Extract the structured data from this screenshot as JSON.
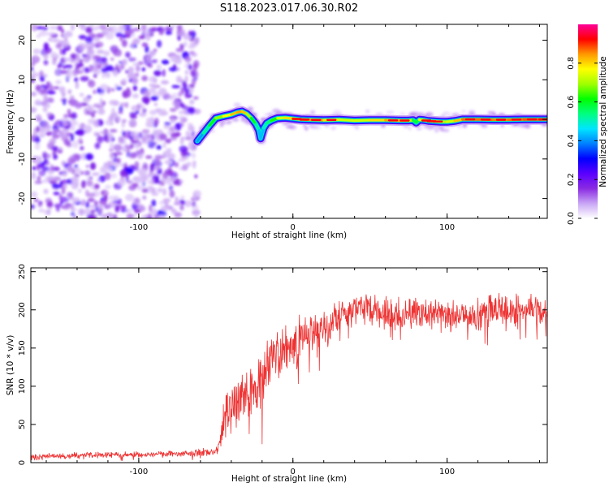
{
  "title": "S118.2023.017.06.30.R02",
  "chart_data": [
    {
      "type": "heatmap",
      "xlabel": "Height of straight line (km)",
      "ylabel": "Frequency (Hz)",
      "xlim": [
        -170,
        165
      ],
      "ylim": [
        -25,
        24
      ],
      "xticks": [
        -100,
        0,
        100
      ],
      "yticks": [
        -20,
        -10,
        0,
        10,
        20
      ],
      "colorbar": {
        "label": "Normalized spectral amplitude",
        "range": [
          0,
          1
        ],
        "ticks": [
          0.0,
          0.2,
          0.4,
          0.6,
          0.8
        ],
        "colors": [
          "#ffffff",
          "#c9a6f5",
          "#8a2be2",
          "#5a00ff",
          "#0000ff",
          "#0080ff",
          "#00e5ff",
          "#00ff80",
          "#00ff00",
          "#a0ff00",
          "#ffff00",
          "#ff9900",
          "#ff0000",
          "#ff0099"
        ]
      },
      "noise_region": {
        "x_range": [
          -170,
          -62
        ],
        "y_range": [
          -25,
          24
        ]
      },
      "signal_trace": {
        "x": [
          -62,
          -58,
          -54,
          -50,
          -45,
          -40,
          -36,
          -33,
          -30,
          -27,
          -24,
          -22,
          -21,
          -19,
          -17,
          -14,
          -10,
          -5,
          0,
          5,
          10,
          20,
          30,
          40,
          50,
          60,
          70,
          75,
          78,
          80,
          82,
          85,
          88,
          92,
          96,
          100,
          105,
          110,
          120,
          130,
          140,
          150,
          160,
          165
        ],
        "y": [
          -5.5,
          -3.5,
          -1.5,
          0.3,
          0.8,
          1.2,
          1.8,
          2.0,
          1.4,
          0.3,
          -1.2,
          -2.8,
          -4.8,
          -2.2,
          -1.0,
          -0.3,
          0.3,
          0.4,
          0.2,
          0.0,
          -0.1,
          -0.2,
          -0.1,
          -0.3,
          -0.2,
          -0.2,
          -0.3,
          -0.3,
          -0.2,
          -0.8,
          -0.1,
          -0.2,
          -0.4,
          -0.5,
          -0.6,
          -0.6,
          -0.4,
          0.0,
          0.0,
          -0.1,
          -0.1,
          0.0,
          0.0,
          0.0
        ],
        "amplitude": [
          0.35,
          0.5,
          0.6,
          0.7,
          0.8,
          0.9,
          0.9,
          0.95,
          0.85,
          0.7,
          0.6,
          0.5,
          0.4,
          0.5,
          0.55,
          0.6,
          0.75,
          0.85,
          0.9,
          0.95,
          0.98,
          0.9,
          0.85,
          0.75,
          0.85,
          0.9,
          0.95,
          0.85,
          0.7,
          0.55,
          0.7,
          0.9,
          0.95,
          0.9,
          0.8,
          0.75,
          0.85,
          0.95,
          0.98,
          0.95,
          0.95,
          0.98,
          0.98,
          0.98
        ]
      }
    },
    {
      "type": "line",
      "xlabel": "Height of straight line (km)",
      "ylabel": "SNR (10 * v/v)",
      "xlim": [
        -170,
        165
      ],
      "ylim": [
        0,
        255
      ],
      "xticks": [
        -100,
        0,
        100
      ],
      "yticks": [
        0,
        50,
        100,
        150,
        200,
        250
      ],
      "color": "#ee3333",
      "series": [
        {
          "x": [
            -170,
            -150,
            -130,
            -110,
            -90,
            -70,
            -60,
            -50,
            -47,
            -45,
            -42,
            -38,
            -35,
            -30,
            -25,
            -20,
            -15,
            -10,
            -5,
            0,
            5,
            10,
            15,
            20,
            25,
            30,
            40,
            50,
            60,
            70,
            80,
            90,
            100,
            110,
            120,
            130,
            140,
            150,
            160,
            165
          ],
          "values": [
            8,
            9,
            10,
            10,
            11,
            12,
            13,
            14,
            25,
            55,
            70,
            80,
            95,
            90,
            100,
            108,
            130,
            140,
            148,
            155,
            160,
            168,
            172,
            178,
            182,
            192,
            200,
            202,
            200,
            195,
            198,
            195,
            190,
            192,
            195,
            198,
            200,
            200,
            198,
            196
          ],
          "noise": [
            4,
            4,
            4,
            4,
            4,
            4,
            5,
            6,
            12,
            28,
            32,
            35,
            38,
            40,
            42,
            42,
            38,
            36,
            34,
            32,
            30,
            28,
            26,
            24,
            24,
            22,
            20,
            22,
            22,
            20,
            22,
            22,
            22,
            20,
            22,
            22,
            22,
            24,
            22,
            20
          ]
        }
      ]
    }
  ]
}
